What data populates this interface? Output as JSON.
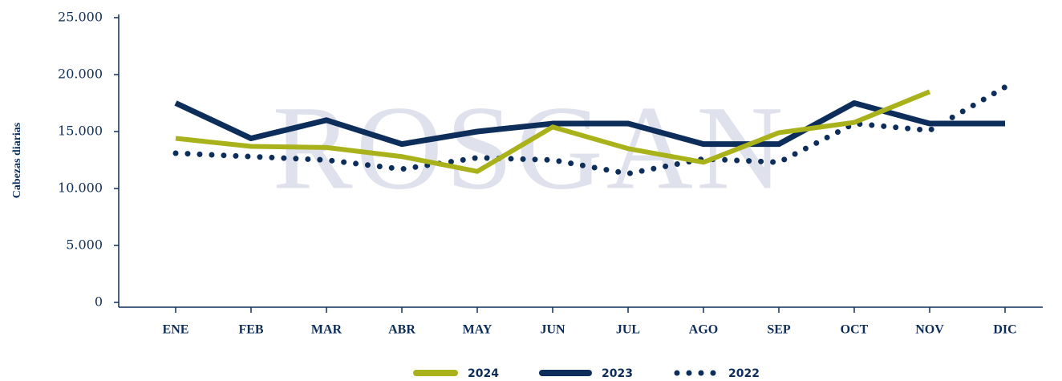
{
  "chart_data": {
    "type": "line",
    "watermark": "ROSGAN",
    "y_label": "Cabezas diarias",
    "categories": [
      "ENE",
      "FEB",
      "MAR",
      "ABR",
      "MAY",
      "JUN",
      "JUL",
      "AGO",
      "SEP",
      "OCT",
      "NOV",
      "DIC"
    ],
    "series": [
      {
        "name": "2024",
        "color": "#a9b21a",
        "style": "solid",
        "values": [
          14.4,
          13.7,
          13.6,
          12.8,
          11.5,
          15.4,
          13.5,
          12.3,
          14.9,
          15.8,
          18.5,
          null
        ]
      },
      {
        "name": "2023",
        "color": "#0d2e5a",
        "style": "solid",
        "values": [
          17.5,
          14.4,
          16.0,
          13.9,
          15.0,
          15.7,
          15.7,
          13.9,
          13.9,
          17.5,
          15.7,
          15.7
        ]
      },
      {
        "name": "2022",
        "color": "#0d2e5a",
        "style": "dotted",
        "values": [
          13.1,
          12.8,
          12.5,
          11.7,
          12.7,
          12.5,
          11.3,
          12.6,
          12.3,
          15.7,
          15.1,
          18.9
        ]
      }
    ],
    "ylim": [
      0,
      25
    ],
    "yticks": [
      0,
      {
        "value": 5,
        "label": "5.000"
      },
      {
        "value": 10,
        "label": "10.000"
      },
      {
        "value": 15,
        "label": "15.000"
      },
      {
        "value": 20,
        "label": "20.000"
      },
      {
        "value": 25,
        "label": "25.000"
      }
    ],
    "legend": "bottom"
  }
}
